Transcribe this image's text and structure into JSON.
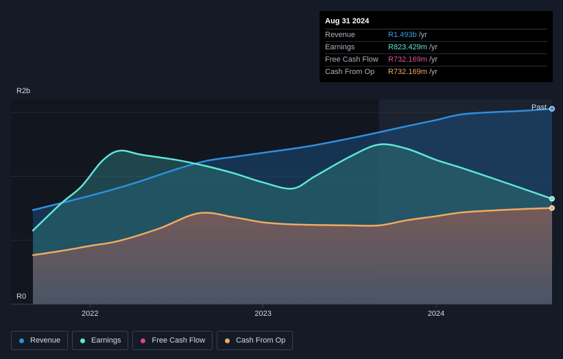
{
  "tooltip": {
    "date": "Aug 31 2024",
    "rows": [
      {
        "label": "Revenue",
        "value": "R1.493b",
        "unit": "/yr",
        "color": "#3b9ee8"
      },
      {
        "label": "Earnings",
        "value": "R823.429m",
        "unit": "/yr",
        "color": "#5ee8d6"
      },
      {
        "label": "Free Cash Flow",
        "value": "R732.169m",
        "unit": "/yr",
        "color": "#e0559f"
      },
      {
        "label": "Cash From Op",
        "value": "R732.169m",
        "unit": "/yr",
        "color": "#f0ab62"
      }
    ]
  },
  "legend": [
    {
      "label": "Revenue",
      "color": "#2f8fe0"
    },
    {
      "label": "Earnings",
      "color": "#5ee8d6"
    },
    {
      "label": "Free Cash Flow",
      "color": "#d0479a"
    },
    {
      "label": "Cash From Op",
      "color": "#f0ab62"
    }
  ],
  "chart_data": {
    "type": "area",
    "y_top_label": "R2b",
    "y_bottom_label": "R0",
    "past_label": "Past",
    "ylim": [
      0,
      2.0
    ],
    "xlim": [
      2021.67,
      2024.67
    ],
    "past_start": 2023.67,
    "x_ticks": [
      {
        "x": 2022.0,
        "label": "2022"
      },
      {
        "x": 2023.0,
        "label": "2023"
      },
      {
        "x": 2024.0,
        "label": "2024"
      }
    ],
    "y_gridlines": [
      0.625,
      1.25,
      1.875
    ],
    "series": [
      {
        "name": "Revenue",
        "color": "#2f8fe0",
        "fill": "#1b4e7a",
        "points": [
          [
            2021.67,
            0.92
          ],
          [
            2022.0,
            1.06
          ],
          [
            2022.25,
            1.18
          ],
          [
            2022.5,
            1.32
          ],
          [
            2022.67,
            1.4
          ],
          [
            2022.83,
            1.44
          ],
          [
            2023.0,
            1.48
          ],
          [
            2023.25,
            1.54
          ],
          [
            2023.5,
            1.62
          ],
          [
            2023.67,
            1.68
          ],
          [
            2023.83,
            1.74
          ],
          [
            2024.0,
            1.8
          ],
          [
            2024.17,
            1.86
          ],
          [
            2024.5,
            1.89
          ],
          [
            2024.67,
            1.91
          ]
        ]
      },
      {
        "name": "Earnings",
        "color": "#5ee8d6",
        "fill": "#2b6e73",
        "points": [
          [
            2021.67,
            0.72
          ],
          [
            2021.83,
            0.98
          ],
          [
            2021.95,
            1.15
          ],
          [
            2022.07,
            1.4
          ],
          [
            2022.17,
            1.5
          ],
          [
            2022.3,
            1.46
          ],
          [
            2022.5,
            1.41
          ],
          [
            2022.67,
            1.35
          ],
          [
            2022.83,
            1.28
          ],
          [
            2023.0,
            1.19
          ],
          [
            2023.17,
            1.13
          ],
          [
            2023.3,
            1.25
          ],
          [
            2023.5,
            1.44
          ],
          [
            2023.67,
            1.56
          ],
          [
            2023.83,
            1.52
          ],
          [
            2024.0,
            1.41
          ],
          [
            2024.17,
            1.32
          ],
          [
            2024.5,
            1.13
          ],
          [
            2024.67,
            1.03
          ]
        ]
      },
      {
        "name": "Cash From Op",
        "color": "#f0ab62",
        "fill": "#6b5556",
        "points": [
          [
            2021.67,
            0.48
          ],
          [
            2021.83,
            0.52
          ],
          [
            2022.0,
            0.57
          ],
          [
            2022.17,
            0.62
          ],
          [
            2022.4,
            0.74
          ],
          [
            2022.63,
            0.89
          ],
          [
            2022.83,
            0.85
          ],
          [
            2023.0,
            0.8
          ],
          [
            2023.17,
            0.78
          ],
          [
            2023.5,
            0.77
          ],
          [
            2023.67,
            0.77
          ],
          [
            2023.83,
            0.82
          ],
          [
            2024.0,
            0.86
          ],
          [
            2024.17,
            0.9
          ],
          [
            2024.5,
            0.93
          ],
          [
            2024.67,
            0.94
          ]
        ]
      }
    ]
  }
}
